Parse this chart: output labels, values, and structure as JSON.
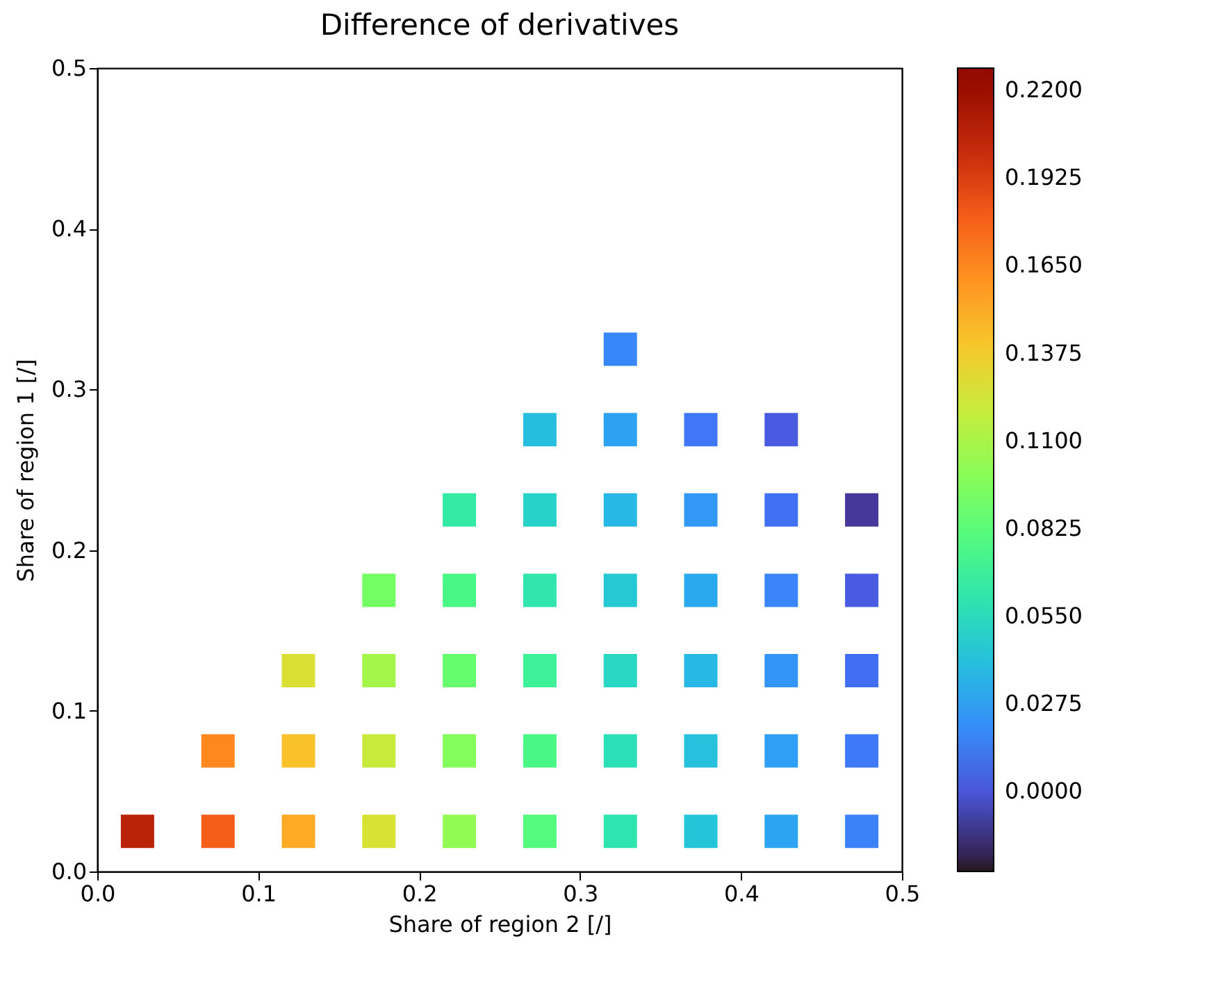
{
  "chart_data": {
    "type": "scatter",
    "title": "Difference of derivatives",
    "xlabel": "Share of region 2 [/]",
    "ylabel": "Share of region 1 [/]",
    "marker": "square",
    "x": [
      0.025,
      0.075,
      0.075,
      0.125,
      0.125,
      0.125,
      0.175,
      0.175,
      0.175,
      0.175,
      0.225,
      0.225,
      0.225,
      0.225,
      0.225,
      0.275,
      0.275,
      0.275,
      0.275,
      0.275,
      0.275,
      0.325,
      0.325,
      0.325,
      0.325,
      0.325,
      0.325,
      0.325,
      0.375,
      0.375,
      0.375,
      0.375,
      0.375,
      0.375,
      0.425,
      0.425,
      0.425,
      0.425,
      0.425,
      0.425,
      0.475,
      0.475,
      0.475,
      0.475,
      0.475
    ],
    "values": [
      0.025,
      0.025,
      0.075,
      0.025,
      0.075,
      0.125,
      0.025,
      0.075,
      0.125,
      0.175,
      0.025,
      0.075,
      0.125,
      0.175,
      0.225,
      0.025,
      0.075,
      0.125,
      0.175,
      0.225,
      0.275,
      0.025,
      0.075,
      0.125,
      0.175,
      0.225,
      0.275,
      0.325,
      0.025,
      0.075,
      0.125,
      0.175,
      0.225,
      0.275,
      0.025,
      0.075,
      0.125,
      0.175,
      0.225,
      0.275,
      0.025,
      0.075,
      0.125,
      0.175,
      0.225
    ],
    "cvalues": [
      0.205,
      0.18,
      0.165,
      0.152,
      0.142,
      0.127,
      0.126,
      0.12,
      0.108,
      0.092,
      0.102,
      0.097,
      0.087,
      0.076,
      0.064,
      0.08,
      0.076,
      0.069,
      0.061,
      0.05,
      0.04,
      0.06,
      0.057,
      0.052,
      0.045,
      0.037,
      0.028,
      0.018,
      0.043,
      0.041,
      0.037,
      0.031,
      0.024,
      0.012,
      0.029,
      0.027,
      0.023,
      0.017,
      0.01,
      0.002,
      0.016,
      0.013,
      0.009,
      0.002,
      -0.012
    ],
    "clim": [
      -0.025,
      0.227
    ],
    "cticks": [
      {
        "value": 0,
        "label": "0.0000"
      },
      {
        "value": 0.0275,
        "label": "0.0275"
      },
      {
        "value": 0.055,
        "label": "0.0550"
      },
      {
        "value": 0.0825,
        "label": "0.0825"
      },
      {
        "value": 0.11,
        "label": "0.1100"
      },
      {
        "value": 0.1375,
        "label": "0.1375"
      },
      {
        "value": 0.165,
        "label": "0.1650"
      },
      {
        "value": 0.1925,
        "label": "0.1925"
      },
      {
        "value": 0.22,
        "label": "0.2200"
      }
    ],
    "xlim": [
      0,
      0.5
    ],
    "ylim": [
      0,
      0.5
    ],
    "xticks": [
      {
        "value": 0,
        "label": "0.0"
      },
      {
        "value": 0.1,
        "label": "0.1"
      },
      {
        "value": 0.2,
        "label": "0.2"
      },
      {
        "value": 0.3,
        "label": "0.3"
      },
      {
        "value": 0.4,
        "label": "0.4"
      },
      {
        "value": 0.5,
        "label": "0.5"
      }
    ],
    "yticks": [
      {
        "value": 0,
        "label": "0.0"
      },
      {
        "value": 0.1,
        "label": "0.1"
      },
      {
        "value": 0.2,
        "label": "0.2"
      },
      {
        "value": 0.3,
        "label": "0.3"
      },
      {
        "value": 0.4,
        "label": "0.4"
      },
      {
        "value": 0.5,
        "label": "0.5"
      }
    ]
  }
}
